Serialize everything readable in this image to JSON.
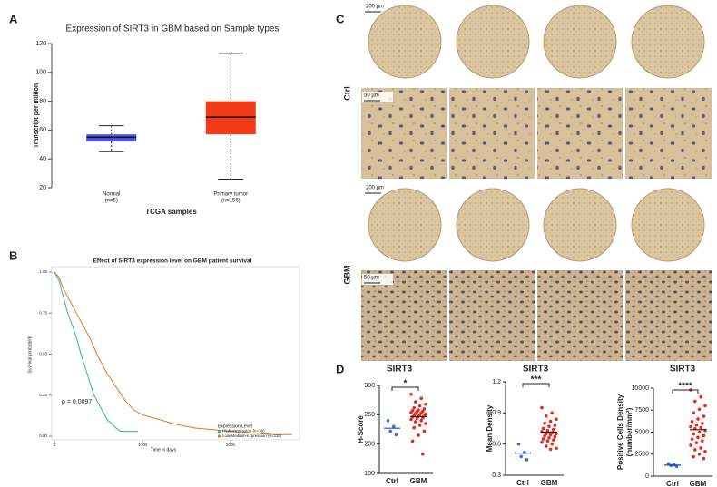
{
  "figure": {
    "panel_labels": [
      "A",
      "B",
      "C",
      "D"
    ],
    "histology": {
      "rows": [
        "Ctrl",
        "GBM"
      ],
      "scale_bars": [
        "200 µm",
        "50 µm",
        "200 µm",
        "50 µm"
      ]
    }
  },
  "chart_data": [
    {
      "type": "box",
      "title": "Expression of SIRT3 in GBM based on Sample types",
      "ylabel": "Transcript per million",
      "xlabel": "TCGA samples",
      "categories": [
        "Normal",
        "Primary tumor"
      ],
      "sample_sizes": [
        "(n=5)",
        "(n=156)"
      ],
      "boxes": [
        {
          "color": "#4b56d8",
          "min": 45,
          "q1": 52,
          "median": 55,
          "q3": 57,
          "max": 63
        },
        {
          "color": "#f23c18",
          "min": 26,
          "q1": 57,
          "median": 69,
          "q3": 80,
          "max": 113
        }
      ],
      "ylim": [
        20,
        120
      ],
      "yticks": [
        20,
        40,
        60,
        80,
        100,
        120
      ]
    },
    {
      "type": "line",
      "title": "Effect of SIRT3 expression level on GBM patient survival",
      "ylabel": "Survival probability",
      "xlabel": "Time in days",
      "annotation": "p = 0.0097",
      "legend": {
        "title": "Expression Level",
        "position": "lower right"
      },
      "series": [
        {
          "name": "High expression (n=39)",
          "color": "#2fb39a",
          "x": [
            0,
            50,
            100,
            150,
            200,
            250,
            300,
            350,
            400,
            450,
            500,
            550,
            600,
            700,
            750,
            950
          ],
          "values": [
            1,
            0.95,
            0.85,
            0.75,
            0.68,
            0.6,
            0.5,
            0.42,
            0.33,
            0.25,
            0.2,
            0.15,
            0.1,
            0.05,
            0.03,
            0.03
          ]
        },
        {
          "name": "Low/Medium-expression (n=115)",
          "color": "#e5771e",
          "x": [
            0,
            50,
            100,
            200,
            300,
            400,
            500,
            600,
            700,
            800,
            900,
            1000,
            1200,
            1400,
            1600,
            1800,
            2000,
            2500,
            2700
          ],
          "values": [
            1,
            0.97,
            0.9,
            0.8,
            0.7,
            0.6,
            0.48,
            0.38,
            0.3,
            0.22,
            0.16,
            0.13,
            0.1,
            0.07,
            0.05,
            0.04,
            0.03,
            0.01,
            0.01
          ]
        }
      ],
      "xlim": [
        0,
        2800
      ],
      "xticks": [
        0,
        1000,
        2000
      ],
      "ylim": [
        0,
        1
      ],
      "yticks": [
        {
          "value": 0,
          "label": "0.00"
        },
        0.25,
        {
          "value": 0.5,
          "label": "0.50"
        },
        0.75,
        {
          "value": 1,
          "label": "1.00"
        }
      ]
    },
    {
      "type": "dot",
      "title": "SIRT3",
      "ylabel": [
        "H-Score"
      ],
      "annotation": "*",
      "categories": [
        "Ctrl",
        "GBM"
      ],
      "groups": [
        {
          "color": "#3a6fd8",
          "values": [
            240,
            230,
            222,
            216
          ]
        },
        {
          "color": "#e8281e",
          "values": [
            285,
            278,
            272,
            268,
            265,
            262,
            260,
            258,
            257,
            256,
            255,
            254,
            253,
            252,
            251,
            250,
            249,
            248,
            247,
            246,
            245,
            244,
            242,
            240,
            238,
            235,
            232,
            228,
            222,
            215,
            205,
            183
          ]
        }
      ],
      "ylim": [
        150,
        300
      ],
      "yticks": [
        150,
        200,
        250,
        300
      ]
    },
    {
      "type": "dot",
      "title": "SIRT3",
      "ylabel": [
        "Mean Density"
      ],
      "annotation": "***",
      "categories": [
        "Ctrl",
        "GBM"
      ],
      "groups": [
        {
          "color": "#3a6fd8",
          "values": [
            0.6,
            0.52,
            0.48,
            0.45
          ]
        },
        {
          "color": "#e8281e",
          "values": [
            0.95,
            0.9,
            0.87,
            0.84,
            0.82,
            0.8,
            0.78,
            0.77,
            0.75,
            0.74,
            0.73,
            0.72,
            0.71,
            0.7,
            0.7,
            0.69,
            0.68,
            0.67,
            0.66,
            0.65,
            0.64,
            0.63,
            0.62,
            0.6,
            0.58,
            0.56,
            0.55
          ]
        }
      ],
      "ylim": [
        0.3,
        1.2
      ],
      "yticks": [
        0.3,
        0.6,
        0.9,
        1.2
      ]
    },
    {
      "type": "dot",
      "title": "SIRT3",
      "ylabel": [
        "Positive Cells Density",
        "(number/mm²)"
      ],
      "annotation": "****",
      "categories": [
        "Ctrl",
        "GBM"
      ],
      "groups": [
        {
          "color": "#3a6fd8",
          "values": [
            1400,
            1300,
            1200,
            1100
          ]
        },
        {
          "color": "#e8281e",
          "values": [
            9800,
            9000,
            8500,
            8000,
            7600,
            7200,
            6800,
            6500,
            6200,
            6000,
            5800,
            5600,
            5500,
            5400,
            5200,
            5000,
            4800,
            4600,
            4400,
            4200,
            4000,
            3800,
            3500,
            3200,
            3000,
            2800,
            2500,
            2200,
            2000
          ]
        }
      ],
      "ylim": [
        0,
        10000
      ],
      "yticks": [
        0,
        2500,
        5000,
        7500,
        10000
      ]
    }
  ]
}
